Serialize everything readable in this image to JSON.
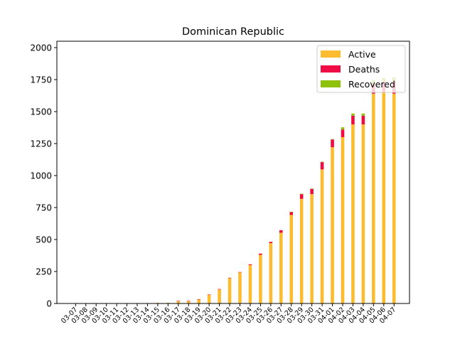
{
  "chart_data": {
    "type": "bar",
    "stacked": true,
    "title": "Dominican Republic",
    "xlabel": "",
    "ylabel": "",
    "ylim": [
      0,
      2050
    ],
    "yticks": [
      0,
      250,
      500,
      750,
      1000,
      1250,
      1500,
      1750,
      2000
    ],
    "legend_position": "top-right",
    "grid": false,
    "categories": [
      "03-07",
      "03-08",
      "03-09",
      "03-10",
      "03-11",
      "03-12",
      "03-13",
      "03-14",
      "03-15",
      "03-16",
      "03-17",
      "03-18",
      "03-19",
      "03-20",
      "03-21",
      "03-22",
      "03-23",
      "03-24",
      "03-25",
      "03-26",
      "03-27",
      "03-28",
      "03-29",
      "03-30",
      "03-31",
      "04-01",
      "04-02",
      "04-03",
      "04-04",
      "04-05",
      "04-06",
      "04-07"
    ],
    "series": [
      {
        "name": "Active",
        "color": "#fbbc2f",
        "values": [
          1,
          1,
          1,
          1,
          1,
          1,
          1,
          1,
          5,
          5,
          19,
          19,
          32,
          68,
          110,
          198,
          243,
          300,
          380,
          472,
          553,
          692,
          818,
          855,
          1048,
          1222,
          1300,
          1400,
          1400,
          1640,
          1650,
          1640
        ]
      },
      {
        "name": "Deaths",
        "color": "#ee0c42",
        "values": [
          0,
          0,
          0,
          0,
          0,
          0,
          0,
          0,
          0,
          0,
          2,
          2,
          2,
          3,
          3,
          3,
          3,
          6,
          10,
          10,
          20,
          22,
          37,
          40,
          57,
          60,
          60,
          68,
          68,
          77,
          82,
          98
        ]
      },
      {
        "name": "Recovered",
        "color": "#8dc10a",
        "values": [
          0,
          0,
          0,
          0,
          0,
          0,
          0,
          0,
          0,
          0,
          0,
          0,
          0,
          0,
          0,
          0,
          0,
          0,
          0,
          0,
          0,
          3,
          3,
          3,
          3,
          3,
          17,
          17,
          17,
          30,
          30,
          30
        ]
      }
    ]
  }
}
